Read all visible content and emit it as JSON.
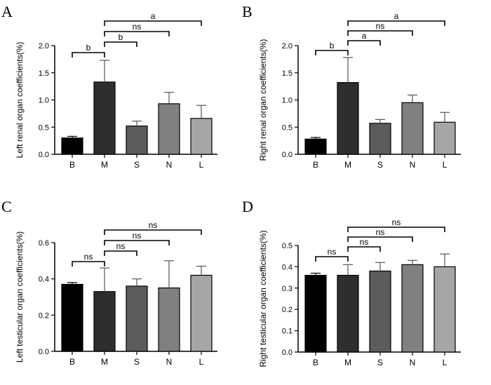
{
  "chart_data": [
    {
      "panel": "A",
      "type": "bar",
      "ylabel": "Left renal organ coefficients(%)",
      "categories": [
        "B",
        "M",
        "S",
        "N",
        "L"
      ],
      "values": [
        0.3,
        1.33,
        0.52,
        0.93,
        0.66
      ],
      "errors": [
        0.03,
        0.4,
        0.09,
        0.21,
        0.24
      ],
      "bar_colors": [
        "#000000",
        "#2e2e2e",
        "#5c5c5c",
        "#808080",
        "#a6a6a6"
      ],
      "ylim": [
        0,
        2.0
      ],
      "yticks": [
        0.0,
        0.5,
        1.0,
        1.5,
        2.0
      ],
      "ytick_labels": [
        "0.0",
        "0.5",
        "1.0",
        "1.5",
        "2.0"
      ],
      "brackets": [
        {
          "from": "B",
          "to": "M",
          "label": "b"
        },
        {
          "from": "M",
          "to": "S",
          "label": "b"
        },
        {
          "from": "M",
          "to": "N",
          "label": "ns"
        },
        {
          "from": "M",
          "to": "L",
          "label": "a"
        }
      ]
    },
    {
      "panel": "B",
      "type": "bar",
      "ylabel": "Right renal organ coefficients(%)",
      "categories": [
        "B",
        "M",
        "S",
        "N",
        "L"
      ],
      "values": [
        0.28,
        1.32,
        0.57,
        0.95,
        0.59
      ],
      "errors": [
        0.03,
        0.46,
        0.07,
        0.14,
        0.18
      ],
      "bar_colors": [
        "#000000",
        "#2e2e2e",
        "#5c5c5c",
        "#808080",
        "#a6a6a6"
      ],
      "ylim": [
        0,
        2.0
      ],
      "yticks": [
        0.0,
        0.5,
        1.0,
        1.5,
        2.0
      ],
      "ytick_labels": [
        "0.0",
        "0.5",
        "1.0",
        "1.5",
        "2.0"
      ],
      "brackets": [
        {
          "from": "B",
          "to": "M",
          "label": "b"
        },
        {
          "from": "M",
          "to": "S",
          "label": "a"
        },
        {
          "from": "M",
          "to": "N",
          "label": "ns"
        },
        {
          "from": "M",
          "to": "L",
          "label": "a"
        }
      ]
    },
    {
      "panel": "C",
      "type": "bar",
      "ylabel": "Left testicular organ coefficients(%)",
      "categories": [
        "B",
        "M",
        "S",
        "N",
        "L"
      ],
      "values": [
        0.37,
        0.33,
        0.36,
        0.35,
        0.42
      ],
      "errors": [
        0.01,
        0.13,
        0.04,
        0.15,
        0.05
      ],
      "bar_colors": [
        "#000000",
        "#2e2e2e",
        "#5c5c5c",
        "#808080",
        "#a6a6a6"
      ],
      "ylim": [
        0,
        0.6
      ],
      "yticks": [
        0.0,
        0.2,
        0.4,
        0.6
      ],
      "ytick_labels": [
        "0.0",
        "0.2",
        "0.4",
        "0.6"
      ],
      "brackets": [
        {
          "from": "B",
          "to": "M",
          "label": "ns"
        },
        {
          "from": "M",
          "to": "S",
          "label": "ns"
        },
        {
          "from": "M",
          "to": "N",
          "label": "ns"
        },
        {
          "from": "M",
          "to": "L",
          "label": "ns"
        }
      ]
    },
    {
      "panel": "D",
      "type": "bar",
      "ylabel": "Right testicular organ coefficients(%)",
      "categories": [
        "B",
        "M",
        "S",
        "N",
        "L"
      ],
      "values": [
        0.36,
        0.36,
        0.38,
        0.41,
        0.4
      ],
      "errors": [
        0.01,
        0.05,
        0.04,
        0.02,
        0.06
      ],
      "bar_colors": [
        "#000000",
        "#2e2e2e",
        "#5c5c5c",
        "#808080",
        "#a6a6a6"
      ],
      "ylim": [
        0,
        0.5
      ],
      "yticks": [
        0.0,
        0.1,
        0.2,
        0.3,
        0.4,
        0.5
      ],
      "ytick_labels": [
        "0.0",
        "0.1",
        "0.2",
        "0.3",
        "0.4",
        "0.5"
      ],
      "brackets": [
        {
          "from": "B",
          "to": "M",
          "label": "ns"
        },
        {
          "from": "M",
          "to": "S",
          "label": "ns"
        },
        {
          "from": "M",
          "to": "N",
          "label": "ns"
        },
        {
          "from": "M",
          "to": "L",
          "label": "ns"
        }
      ]
    }
  ]
}
